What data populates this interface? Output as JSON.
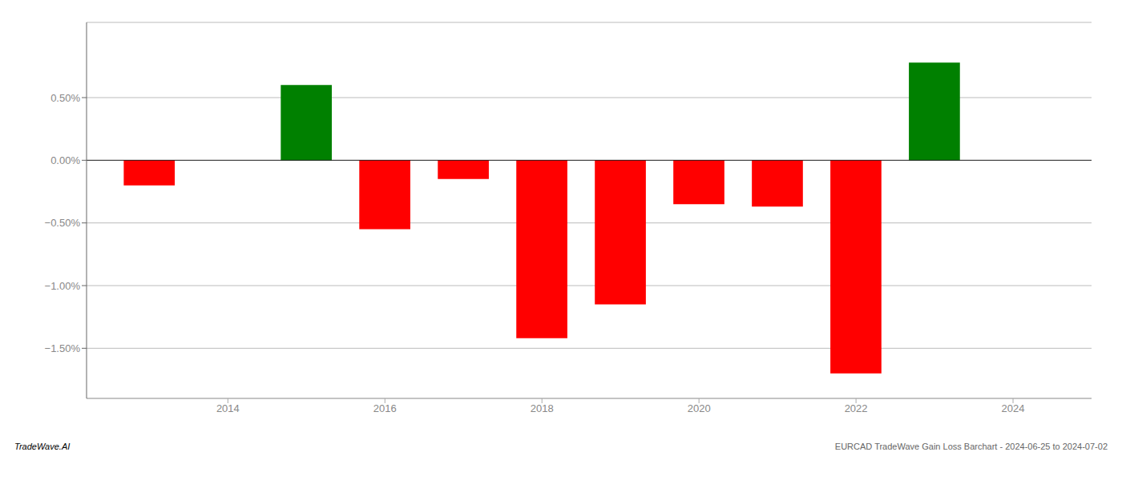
{
  "chart_data": {
    "type": "bar",
    "x": [
      2013,
      2015,
      2016,
      2017,
      2018,
      2019,
      2020,
      2021,
      2022,
      2023
    ],
    "values": [
      -0.2,
      0.6,
      -0.55,
      -0.15,
      -1.42,
      -1.15,
      -0.35,
      -0.37,
      -1.7,
      0.78
    ],
    "colors": [
      "#FF0000",
      "#008000",
      "#FF0000",
      "#FF0000",
      "#FF0000",
      "#FF0000",
      "#FF0000",
      "#FF0000",
      "#FF0000",
      "#008000"
    ],
    "xlim": [
      2012.2,
      2025.0
    ],
    "ylim": [
      -1.9,
      1.1
    ],
    "xticks": [
      2014,
      2016,
      2018,
      2020,
      2022,
      2024
    ],
    "yticks": [
      {
        "value": -1.5,
        "label": "−1.50%"
      },
      {
        "value": -1.0,
        "label": "−1.00%"
      },
      {
        "value": -0.5,
        "label": "−0.50%"
      },
      {
        "value": 0.0,
        "label": "0.00%"
      },
      {
        "value": 0.5,
        "label": "0.50%"
      }
    ],
    "grid": true,
    "annotations": [
      "TradeWave.AI",
      "EURCAD TradeWave Gain Loss Barchart - 2024-06-25 to 2024-07-02"
    ]
  }
}
